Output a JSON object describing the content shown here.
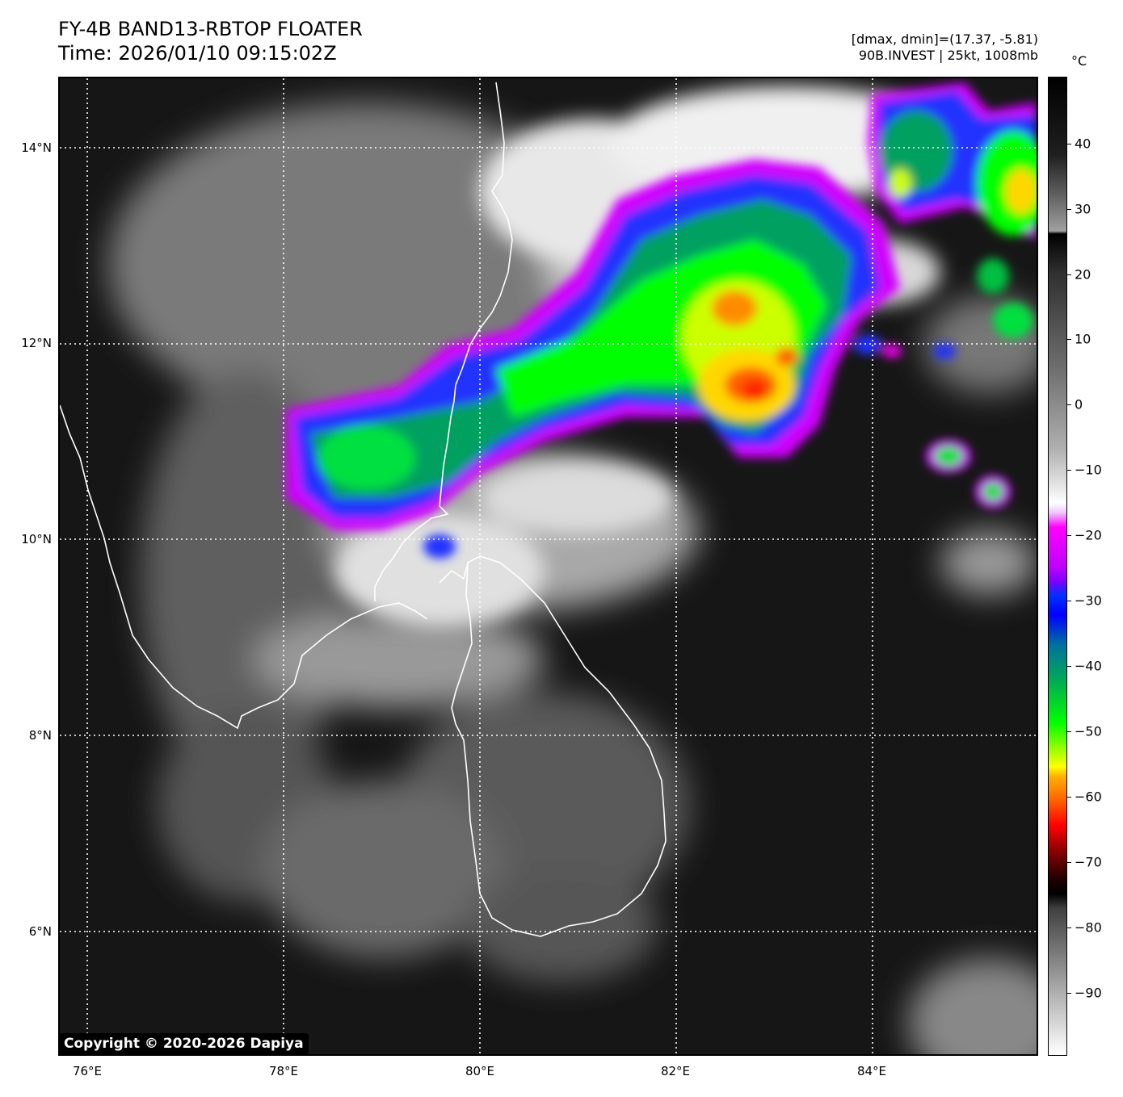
{
  "header": {
    "title_line1": "FY-4B BAND13-RBTOP FLOATER",
    "title_line2": "Time: 2026/01/10 09:15:02Z",
    "meta_line1": "[dmax, dmin]=(17.37, -5.81)",
    "meta_line2": "90B.INVEST | 25kt, 1008mb"
  },
  "map": {
    "lat_labels": [
      "14°N",
      "12°N",
      "10°N",
      "8°N",
      "6°N"
    ],
    "lon_labels": [
      "76°E",
      "78°E",
      "80°E",
      "82°E",
      "84°E"
    ],
    "coastline_color": "#ffffff",
    "grid_color": "#ffffff",
    "gridlines": "dotted"
  },
  "colorbar": {
    "unit": "°C",
    "labels": [
      "40",
      "30",
      "20",
      "10",
      "0",
      "−10",
      "−20",
      "−30",
      "−40",
      "−50",
      "−60",
      "−70",
      "−80",
      "−90"
    ],
    "range": [
      -100,
      50
    ],
    "palette": [
      "#ffffff",
      "#000000",
      "#8b0000",
      "#ff0000",
      "#ff8c00",
      "#ffd700",
      "#ccff00",
      "#00ff00",
      "#00a060",
      "#0040ff",
      "#8000ff",
      "#ff00ff"
    ]
  },
  "copyright": "Copyright © 2020-2026 Dapiya"
}
